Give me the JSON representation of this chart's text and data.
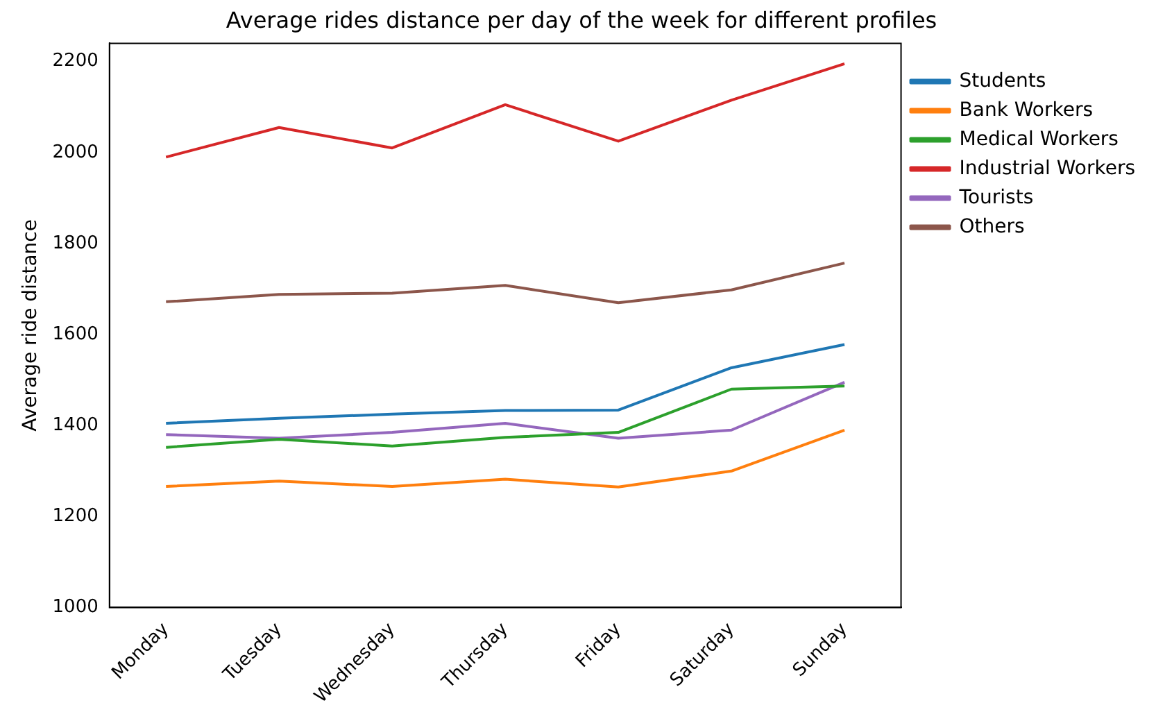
{
  "chart_data": {
    "type": "line",
    "title": "Average rides distance per day of the week for different profiles",
    "ylabel": "Average ride distance",
    "categories": [
      "Monday",
      "Tuesday",
      "Wednesday",
      "Thursday",
      "Friday",
      "Saturday",
      "Sunday"
    ],
    "series": [
      {
        "name": "Students",
        "color": "#1f77b4",
        "values": [
          1405,
          1416,
          1425,
          1433,
          1434,
          1527,
          1578
        ]
      },
      {
        "name": "Bank Workers",
        "color": "#ff7f0e",
        "values": [
          1266,
          1278,
          1266,
          1282,
          1265,
          1300,
          1390
        ]
      },
      {
        "name": "Medical Workers",
        "color": "#2ca02c",
        "values": [
          1352,
          1370,
          1355,
          1374,
          1385,
          1480,
          1487
        ]
      },
      {
        "name": "Industrial Workers",
        "color": "#d62728",
        "values": [
          1990,
          2055,
          2010,
          2105,
          2025,
          2115,
          2195
        ]
      },
      {
        "name": "Tourists",
        "color": "#9467bd",
        "values": [
          1380,
          1372,
          1385,
          1405,
          1372,
          1390,
          1495
        ]
      },
      {
        "name": "Others",
        "color": "#8c564b",
        "values": [
          1672,
          1688,
          1691,
          1708,
          1670,
          1698,
          1757
        ]
      }
    ],
    "ylim": [
      1000,
      2240
    ],
    "yticks": [
      1000,
      1200,
      1400,
      1600,
      1800,
      2000,
      2200
    ],
    "grid": false,
    "legend": "right",
    "marker": "none",
    "line_style": "solid"
  }
}
